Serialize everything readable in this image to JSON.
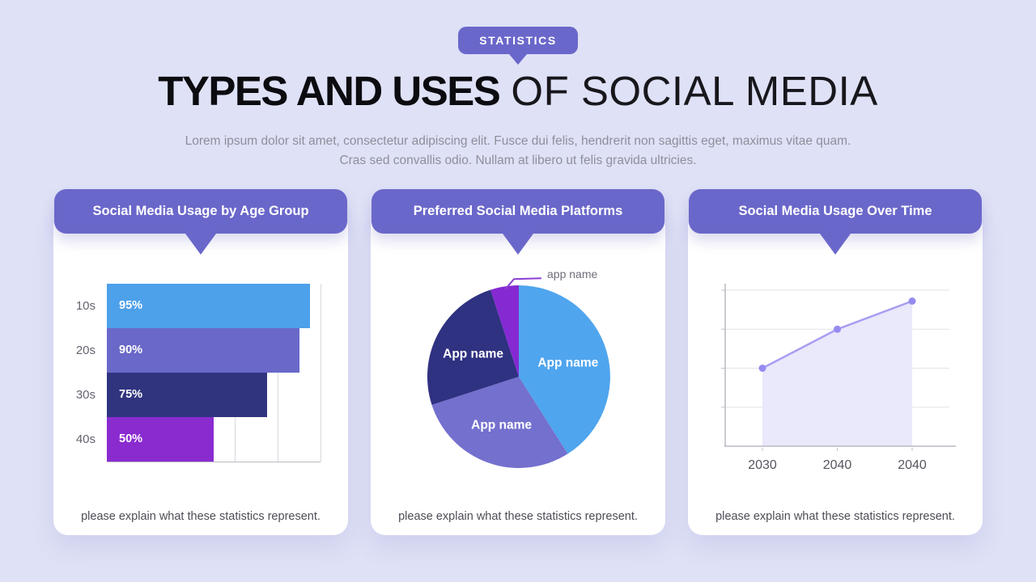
{
  "theme": {
    "accent": "#6a67ca",
    "page_bg": "#dfe1f6",
    "card_bg": "#ffffff",
    "subtitle_color": "#8e8f9c",
    "note_color": "#4c4d56",
    "grid_color": "#d9d9e0",
    "axis_color": "#b9b9c3",
    "tick_label_color": "#55565e",
    "callout_line_color": "#8b3ed3",
    "callout_text_color": "#6d6e79"
  },
  "header": {
    "badge": "STATISTICS",
    "title_bold": "TYPES AND USES",
    "title_light": "OF SOCIAL MEDIA",
    "subtitle_line1": "Lorem ipsum dolor sit amet, consectetur adipiscing elit. Fusce dui felis, hendrerit non sagittis eget, maximus vitae quam.",
    "subtitle_line2": "Cras sed convallis odio. Nullam at libero ut felis gravida ultricies."
  },
  "footer_note": "please explain what these statistics represent.",
  "chart_data": [
    {
      "type": "bar",
      "orientation": "horizontal",
      "title": "Social Media Usage by Age Group",
      "categories": [
        "10s",
        "20s",
        "30s",
        "40s"
      ],
      "values": [
        95,
        90,
        75,
        50
      ],
      "value_labels": [
        "95%",
        "90%",
        "75%",
        "50%"
      ],
      "bar_colors": [
        "#4da0ea",
        "#6a68c8",
        "#30347f",
        "#8a2bd0"
      ],
      "xlim": [
        0,
        100
      ],
      "grid_step": 20,
      "grid": true
    },
    {
      "type": "pie",
      "title": "Preferred Social Media Platforms",
      "start_angle_deg": 0,
      "direction": "clockwise",
      "slices": [
        {
          "label": "App name",
          "value": 41,
          "color": "#4fa5ee"
        },
        {
          "label": "App name",
          "value": 29,
          "color": "#7470ce"
        },
        {
          "label": "App name",
          "value": 25,
          "color": "#2f3181"
        },
        {
          "label": "app name",
          "value": 5,
          "color": "#8529d2",
          "callout": true
        }
      ]
    },
    {
      "type": "line",
      "title": "Social Media Usage Over Time",
      "x": [
        "2030",
        "2040",
        "2040"
      ],
      "values": [
        50,
        75,
        93
      ],
      "ylim": [
        0,
        100
      ],
      "grid_step": 25,
      "area_fill": true,
      "line_color": "#a89ef1",
      "point_color": "#968bf0",
      "fill_color": "#eae8fb"
    }
  ]
}
